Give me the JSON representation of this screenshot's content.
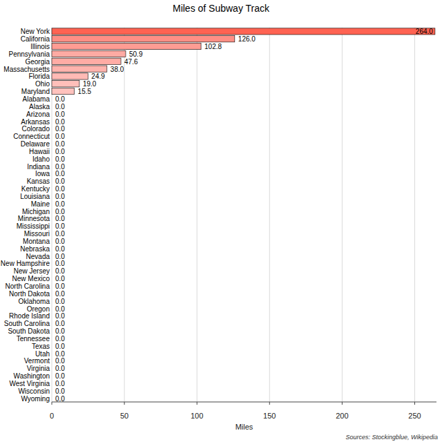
{
  "chart_data": {
    "type": "bar",
    "orientation": "horizontal",
    "title": "Miles of Subway Track",
    "x_label": "Miles",
    "annotations": [
      "Sources: Stockingblue, Wikipedia"
    ],
    "categories": [
      "New York",
      "California",
      "Illinois",
      "Pennsylvania",
      "Georgia",
      "Massachusetts",
      "Florida",
      "Ohio",
      "Maryland",
      "Alabama",
      "Alaska",
      "Arizona",
      "Arkansas",
      "Colorado",
      "Connecticut",
      "Delaware",
      "Hawaii",
      "Idaho",
      "Indiana",
      "Iowa",
      "Kansas",
      "Kentucky",
      "Louisiana",
      "Maine",
      "Michigan",
      "Minnesota",
      "Mississippi",
      "Missouri",
      "Montana",
      "Nebraska",
      "Nevada",
      "New Hampshire",
      "New Jersey",
      "New Mexico",
      "North Carolina",
      "North Dakota",
      "Oklahoma",
      "Oregon",
      "Rhode Island",
      "South Carolina",
      "South Dakota",
      "Tennessee",
      "Texas",
      "Utah",
      "Vermont",
      "Virginia",
      "Washington",
      "West Virginia",
      "Wisconsin",
      "Wyoming"
    ],
    "values": [
      264.0,
      126.0,
      102.8,
      50.9,
      47.6,
      38.0,
      24.9,
      19.0,
      15.5,
      0,
      0,
      0,
      0,
      0,
      0,
      0,
      0,
      0,
      0,
      0,
      0,
      0,
      0,
      0,
      0,
      0,
      0,
      0,
      0,
      0,
      0,
      0,
      0,
      0,
      0,
      0,
      0,
      0,
      0,
      0,
      0,
      0,
      0,
      0,
      0,
      0,
      0,
      0,
      0,
      0
    ],
    "value_labels": [
      "264.0",
      "126.0",
      "102.8",
      "50.9",
      "47.6",
      "38.0",
      "24.9",
      "19.0",
      "15.5",
      "0.0",
      "0.0",
      "0.0",
      "0.0",
      "0.0",
      "0.0",
      "0.0",
      "0.0",
      "0.0",
      "0.0",
      "0.0",
      "0.0",
      "0.0",
      "0.0",
      "0.0",
      "0.0",
      "0.0",
      "0.0",
      "0.0",
      "0.0",
      "0.0",
      "0.0",
      "0.0",
      "0.0",
      "0.0",
      "0.0",
      "0.0",
      "0.0",
      "0.0",
      "0.0",
      "0.0",
      "0.0",
      "0.0",
      "0.0",
      "0.0",
      "0.0",
      "0.0",
      "0.0",
      "0.0",
      "0.0",
      "0.0"
    ],
    "colors": [
      "#ff6352",
      "#ff8f85",
      "#ff9c93",
      "#ffaaa3",
      "#ffaca5",
      "#ffb3ad",
      "#ffbab5",
      "#ffbfba",
      "#ffc2bd",
      "#ffd5d2",
      "#ffd5d2",
      "#ffd5d2",
      "#ffd5d2",
      "#ffd5d2",
      "#ffd5d2",
      "#ffd5d2",
      "#ffd5d2",
      "#ffd5d2",
      "#ffd5d2",
      "#ffd5d2",
      "#ffd5d2",
      "#ffd5d2",
      "#ffd5d2",
      "#ffd5d2",
      "#ffd5d2",
      "#ffd5d2",
      "#ffd5d2",
      "#ffd5d2",
      "#ffd5d2",
      "#ffd5d2",
      "#ffd5d2",
      "#ffd5d2",
      "#ffd5d2",
      "#ffd5d2",
      "#ffd5d2",
      "#ffd5d2",
      "#ffd5d2",
      "#ffd5d2",
      "#ffd5d2",
      "#ffd5d2",
      "#ffd5d2",
      "#ffd5d2",
      "#ffd5d2",
      "#ffd5d2",
      "#ffd5d2",
      "#ffd5d2",
      "#ffd5d2",
      "#ffd5d2",
      "#ffd5d2",
      "#ffd5d2"
    ],
    "xlim": [
      0,
      265
    ],
    "xticks": [
      0,
      50,
      100,
      150,
      200,
      250
    ],
    "grid": true,
    "data_labels": true
  }
}
